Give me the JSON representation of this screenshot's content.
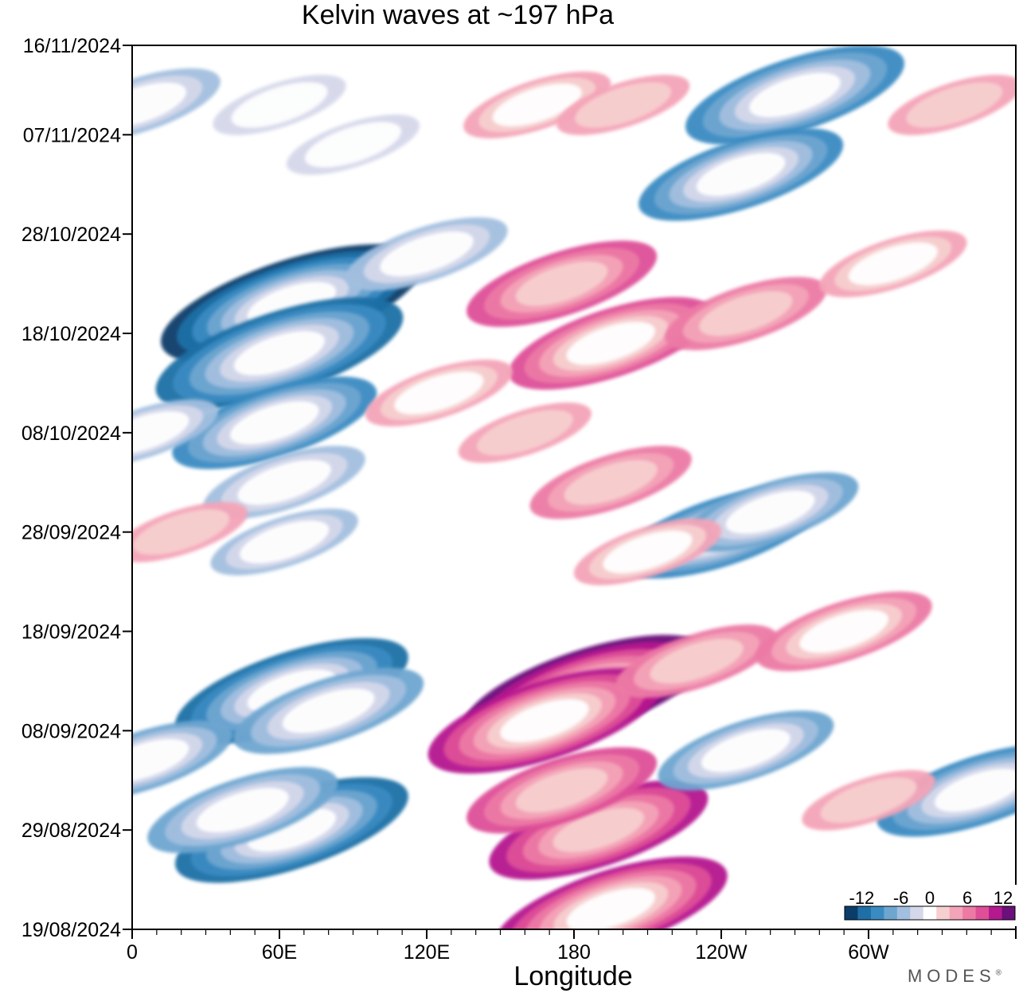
{
  "chart_data": {
    "type": "heatmap",
    "title": "Kelvin waves at ~197 hPa",
    "xlabel": "Longitude",
    "ylabel": "",
    "x_ticks": [
      {
        "lon": 0,
        "label": "0"
      },
      {
        "lon": 60,
        "label": "60E"
      },
      {
        "lon": 120,
        "label": "120E"
      },
      {
        "lon": 180,
        "label": "180"
      },
      {
        "lon": 240,
        "label": "120W"
      },
      {
        "lon": 300,
        "label": "60W"
      }
    ],
    "xlim": [
      0,
      360
    ],
    "y_ticks": [
      {
        "date": "2024-11-16",
        "label": "16/11/2024"
      },
      {
        "date": "2024-11-07",
        "label": "07/11/2024"
      },
      {
        "date": "2024-10-28",
        "label": "28/10/2024"
      },
      {
        "date": "2024-10-18",
        "label": "18/10/2024"
      },
      {
        "date": "2024-10-08",
        "label": "08/10/2024"
      },
      {
        "date": "2024-09-28",
        "label": "28/09/2024"
      },
      {
        "date": "2024-09-18",
        "label": "18/09/2024"
      },
      {
        "date": "2024-09-08",
        "label": "08/09/2024"
      },
      {
        "date": "2024-08-29",
        "label": "29/08/2024"
      },
      {
        "date": "2024-08-19",
        "label": "19/08/2024"
      }
    ],
    "ylim": [
      "2024-08-19",
      "2024-11-16"
    ],
    "colorbar": {
      "labels": [
        "-12",
        "-6",
        "0",
        "6",
        "12"
      ],
      "levels": [
        -14,
        -12,
        -10,
        -8,
        -6,
        -4,
        -2,
        2,
        4,
        6,
        8,
        10,
        12,
        14
      ],
      "colors": [
        "#0b3d6b",
        "#1f6fa6",
        "#3a8bc2",
        "#6ea6d0",
        "#a3bfdf",
        "#d5d8ea",
        "#ffffff",
        "#f7cfcf",
        "#f4a4b8",
        "#ec7aa5",
        "#de4f98",
        "#b5198f",
        "#6b0f7a"
      ]
    },
    "anomalies": [
      {
        "lon": 3,
        "date": "2024-11-10",
        "value": -6
      },
      {
        "lon": 60,
        "date": "2024-11-10",
        "value": -4
      },
      {
        "lon": 90,
        "date": "2024-11-06",
        "value": -4
      },
      {
        "lon": 165,
        "date": "2024-11-10",
        "value": 5
      },
      {
        "lon": 200,
        "date": "2024-11-10",
        "value": 4
      },
      {
        "lon": 270,
        "date": "2024-11-11",
        "value": -10
      },
      {
        "lon": 248,
        "date": "2024-11-03",
        "value": -9
      },
      {
        "lon": 335,
        "date": "2024-11-10",
        "value": 4
      },
      {
        "lon": 65,
        "date": "2024-10-21",
        "value": -13
      },
      {
        "lon": 60,
        "date": "2024-10-16",
        "value": -12
      },
      {
        "lon": 58,
        "date": "2024-10-09",
        "value": -9
      },
      {
        "lon": 62,
        "date": "2024-10-03",
        "value": -6
      },
      {
        "lon": 62,
        "date": "2024-09-27",
        "value": -5
      },
      {
        "lon": 120,
        "date": "2024-10-26",
        "value": -6
      },
      {
        "lon": 175,
        "date": "2024-10-23",
        "value": 8
      },
      {
        "lon": 195,
        "date": "2024-10-17",
        "value": 9
      },
      {
        "lon": 250,
        "date": "2024-10-20",
        "value": 6
      },
      {
        "lon": 310,
        "date": "2024-10-25",
        "value": 5
      },
      {
        "lon": 125,
        "date": "2024-10-12",
        "value": 5
      },
      {
        "lon": 160,
        "date": "2024-10-08",
        "value": 4
      },
      {
        "lon": 195,
        "date": "2024-10-03",
        "value": 6
      },
      {
        "lon": 240,
        "date": "2024-09-28",
        "value": -9
      },
      {
        "lon": 260,
        "date": "2024-09-30",
        "value": -7
      },
      {
        "lon": 210,
        "date": "2024-09-26",
        "value": 5
      },
      {
        "lon": 65,
        "date": "2024-09-12",
        "value": -11
      },
      {
        "lon": 80,
        "date": "2024-09-10",
        "value": -8
      },
      {
        "lon": 185,
        "date": "2024-09-12",
        "value": 12
      },
      {
        "lon": 168,
        "date": "2024-09-09",
        "value": 11
      },
      {
        "lon": 230,
        "date": "2024-09-15",
        "value": 6
      },
      {
        "lon": 290,
        "date": "2024-09-18",
        "value": 7
      },
      {
        "lon": 65,
        "date": "2024-08-29",
        "value": -11
      },
      {
        "lon": 45,
        "date": "2024-08-31",
        "value": -8
      },
      {
        "lon": 190,
        "date": "2024-08-29",
        "value": 10
      },
      {
        "lon": 175,
        "date": "2024-09-02",
        "value": 8
      },
      {
        "lon": 195,
        "date": "2024-08-21",
        "value": 11
      },
      {
        "lon": 250,
        "date": "2024-09-06",
        "value": -7
      },
      {
        "lon": 345,
        "date": "2024-09-02",
        "value": -9
      },
      {
        "lon": 5,
        "date": "2024-09-05",
        "value": -7
      },
      {
        "lon": 5,
        "date": "2024-10-08",
        "value": -5
      },
      {
        "lon": 20,
        "date": "2024-09-28",
        "value": 4
      },
      {
        "lon": 300,
        "date": "2024-09-01",
        "value": 4
      }
    ]
  },
  "brand": "MODES"
}
